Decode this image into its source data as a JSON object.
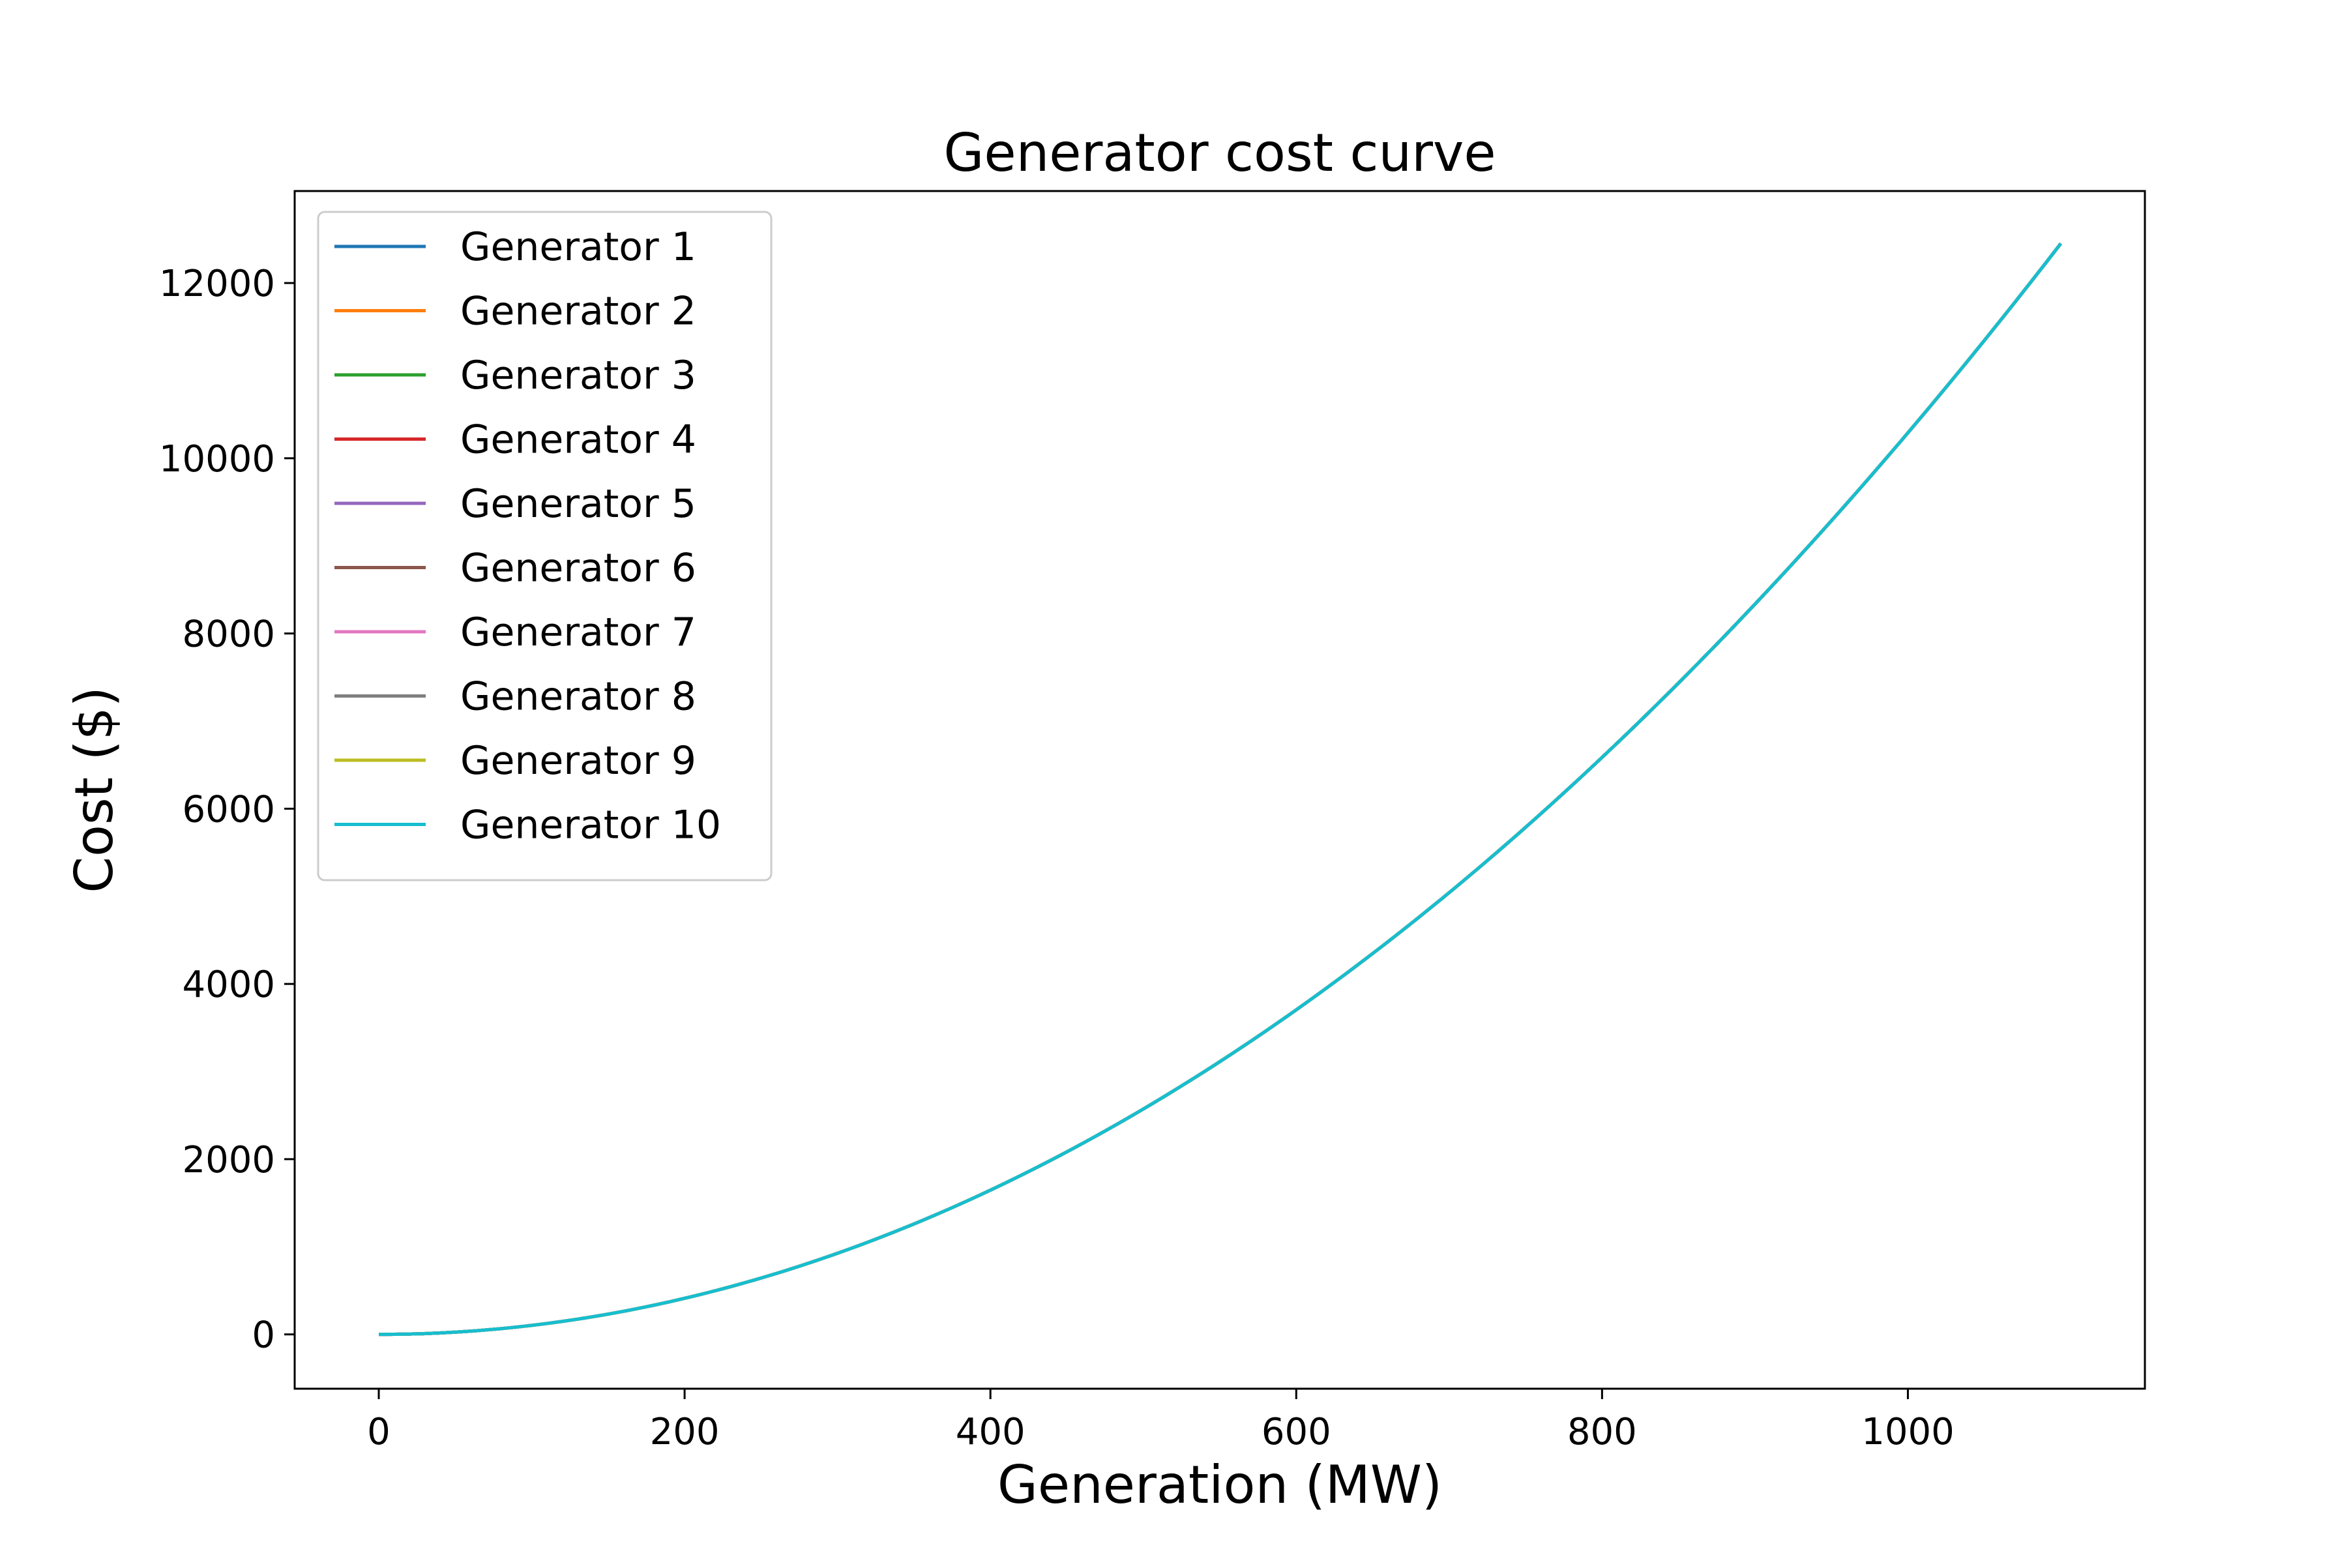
{
  "chart_data": {
    "type": "line",
    "title": "Generator cost curve",
    "xlabel": "Generation (MW)",
    "ylabel": "Cost ($)",
    "xlim": [
      -55,
      1155
    ],
    "ylim": [
      -620,
      13050
    ],
    "xticks": [
      0,
      200,
      400,
      600,
      800,
      1000
    ],
    "yticks": [
      0,
      2000,
      4000,
      6000,
      8000,
      10000,
      12000
    ],
    "grid": false,
    "legend": {
      "placement": "top-left"
    },
    "x_range": [
      0,
      1100
    ],
    "cost_per_mw_squared": 0.01029,
    "series": [
      {
        "name": "Generator 1",
        "color": "#1f77b4"
      },
      {
        "name": "Generator 2",
        "color": "#ff7f0e"
      },
      {
        "name": "Generator 3",
        "color": "#2ca02c"
      },
      {
        "name": "Generator 4",
        "color": "#d62728"
      },
      {
        "name": "Generator 5",
        "color": "#9467bd"
      },
      {
        "name": "Generator 6",
        "color": "#8c564b"
      },
      {
        "name": "Generator 7",
        "color": "#e377c2"
      },
      {
        "name": "Generator 8",
        "color": "#7f7f7f"
      },
      {
        "name": "Generator 9",
        "color": "#bcbd22"
      },
      {
        "name": "Generator 10",
        "color": "#17becf"
      }
    ],
    "sample_points": {
      "x": [
        0,
        100,
        200,
        300,
        400,
        500,
        600,
        700,
        800,
        900,
        1000,
        1100
      ],
      "y": [
        0,
        103,
        412,
        926,
        1646,
        2573,
        3704,
        5042,
        6586,
        8335,
        10290,
        12451
      ]
    }
  }
}
